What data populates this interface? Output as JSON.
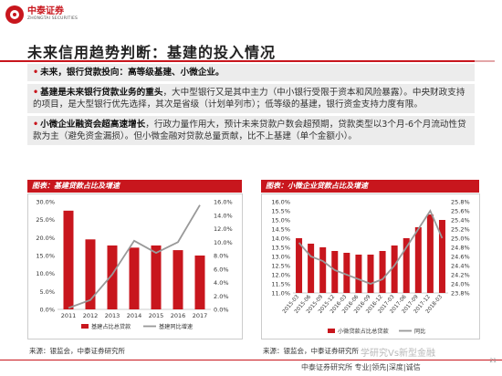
{
  "brand": {
    "name_cn": "中泰证券",
    "name_en": "ZHONGTAI SECURITIES"
  },
  "title": "未来信用趋势判断：基建的投入情况",
  "bullets": [
    {
      "bold": "未来，银行贷款投向：高等级基建、小微企业。",
      "text": ""
    },
    {
      "bold": "基建是未来银行贷款业务的重头",
      "text": "，大中型银行又是其中主力（中小银行受限于资本和风险暴露）。中央财政支持的项目，是大型银行优先选择，其次是省级（计划单列市）；低等级的基建，银行资金支持力度有限。"
    },
    {
      "bold": "小微企业融资会超高速增长",
      "text": "，行政力量作用大，预计未来贷款户数会超预期，贷款类型以3个月-6个月流动性贷款为主（避免资金漏损）。但小微金融对贷款总量贡献，比不上基建（单个金额小）。"
    }
  ],
  "chart1": {
    "header": "图表：基建贷款占比及增速",
    "source": "来源：银监会，中泰证券研究所"
  },
  "chart2": {
    "header": "图表：小微企业贷款占比及增速",
    "source": "来源：银监会，中泰证券研究所"
  },
  "chart_data": [
    {
      "type": "bar",
      "categories": [
        "2011",
        "2012",
        "2013",
        "2014",
        "2015",
        "2016",
        "2017"
      ],
      "series": [
        {
          "name": "基建占比总贷款",
          "values": [
            27.5,
            19.5,
            17.8,
            17.2,
            17.8,
            16.5,
            15.0
          ],
          "axis": "left",
          "kind": "bar"
        },
        {
          "name": "基建同比增速",
          "values": [
            0.2,
            1.4,
            5.2,
            10.2,
            8.4,
            10.0,
            15.5
          ],
          "axis": "right",
          "kind": "line"
        }
      ],
      "ylim_left": [
        0,
        30
      ],
      "ylim_right": [
        0,
        16
      ],
      "yticks_left": [
        "0.0%",
        "5.0%",
        "10.0%",
        "15.0%",
        "20.0%",
        "25.0%",
        "30.0%"
      ],
      "yticks_right": [
        "0.0%",
        "2.0%",
        "4.0%",
        "6.0%",
        "8.0%",
        "10.0%",
        "12.0%",
        "14.0%",
        "16.0%"
      ],
      "colors": {
        "bar": "#c8161d",
        "line": "#999999"
      }
    },
    {
      "type": "bar",
      "categories": [
        "2015-03",
        "2015-06",
        "2015-09",
        "2015-12",
        "2016-03",
        "2016-06",
        "2016-09",
        "2016-12",
        "2017-03",
        "2017-06",
        "2017-09",
        "2017-12",
        "2018-03"
      ],
      "series": [
        {
          "name": "小微贷款占比总贷款",
          "values": [
            14.0,
            13.7,
            13.5,
            13.3,
            13.2,
            13.1,
            13.1,
            13.3,
            13.6,
            14.0,
            14.6,
            15.3,
            15.0
          ],
          "axis": "left",
          "kind": "bar"
        },
        {
          "name": "同比",
          "values": [
            24.9,
            24.6,
            24.5,
            24.3,
            24.2,
            24.1,
            24.0,
            24.1,
            24.4,
            24.8,
            25.2,
            25.6,
            25.0
          ],
          "axis": "right",
          "kind": "line"
        }
      ],
      "ylim_left": [
        11.0,
        16.0
      ],
      "ylim_right": [
        23.8,
        25.8
      ],
      "yticks_left": [
        "11.0%",
        "11.5%",
        "12.0%",
        "12.5%",
        "13.0%",
        "13.5%",
        "14.0%",
        "14.5%",
        "15.0%",
        "15.5%",
        "16.0%"
      ],
      "yticks_right": [
        "23.8%",
        "24.0%",
        "24.2%",
        "24.4%",
        "24.6%",
        "24.8%",
        "25.0%",
        "25.2%",
        "25.4%",
        "25.6%",
        "25.8%"
      ],
      "colors": {
        "bar": "#c8161d",
        "line": "#999999"
      }
    }
  ],
  "footer": "中泰证券研究所 专业|领先|深度|诚信",
  "watermark": "学研究Vs新型金融",
  "page_number": "21"
}
